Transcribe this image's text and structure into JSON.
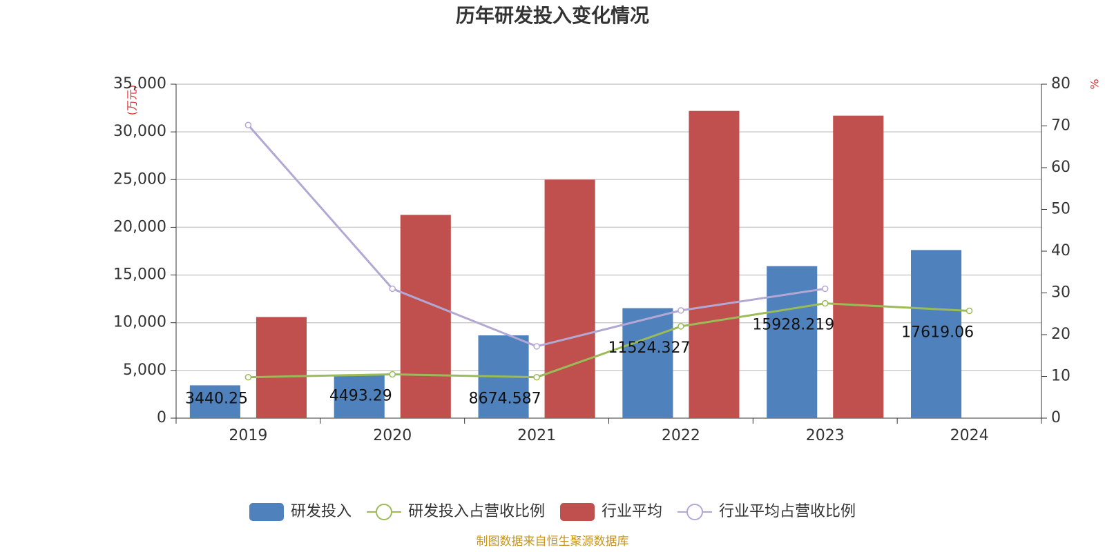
{
  "chart_data": {
    "type": "bar-line",
    "title": "历年研发投入变化情况",
    "ylabel": "(万元)",
    "y2label": "%",
    "source": "制图数据来自恒生聚源数据库",
    "categories": [
      "2019",
      "2020",
      "2021",
      "2022",
      "2023",
      "2024"
    ],
    "series": [
      {
        "name": "研发投入",
        "type": "bar",
        "color": "#4f81bd",
        "values": [
          3440.25,
          4493.29,
          8674.587,
          11524.327,
          15928.219,
          17619.06
        ]
      },
      {
        "name": "研发投入占营收比例",
        "type": "line",
        "axis": "y2",
        "color": "#9bbb59",
        "values": [
          9.8,
          10.5,
          9.8,
          22,
          27.5,
          25.7
        ]
      },
      {
        "name": "行业平均",
        "type": "bar",
        "color": "#c0504d",
        "values": [
          10600,
          21300,
          25000,
          32200,
          31700,
          null
        ]
      },
      {
        "name": "行业平均占营收比例",
        "type": "line",
        "axis": "y2",
        "color": "#b3a8d3",
        "values": [
          70.2,
          31,
          17.2,
          25.8,
          31,
          null
        ]
      }
    ],
    "ylim": [
      0,
      35000
    ],
    "yticks": [
      0,
      {
        "value": 5000,
        "label": "5,000"
      },
      {
        "value": 10000,
        "label": "10,000"
      },
      {
        "value": 15000,
        "label": "15,000"
      },
      {
        "value": 20000,
        "label": "20,000"
      },
      {
        "value": 25000,
        "label": "25,000"
      },
      {
        "value": 30000,
        "label": "30,000"
      },
      {
        "value": 35000,
        "label": "35,000"
      }
    ],
    "y2lim": [
      0,
      80
    ],
    "y2ticks": [
      0,
      10,
      20,
      30,
      40,
      50,
      60,
      70,
      80
    ],
    "grid": true
  }
}
